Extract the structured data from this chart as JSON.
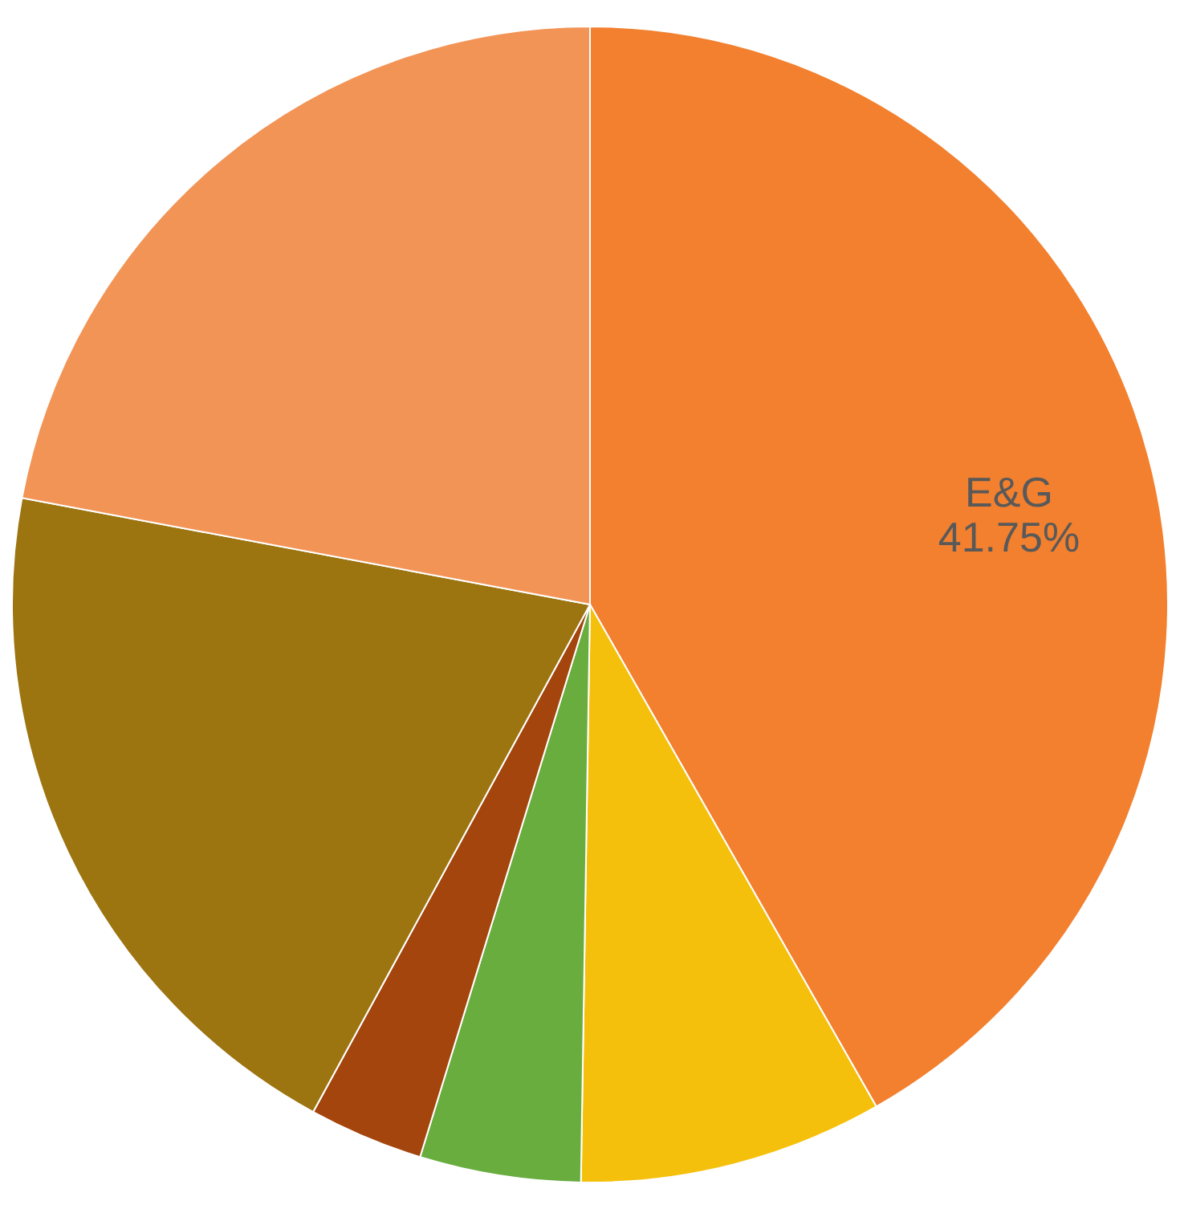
{
  "chart_data": {
    "type": "pie",
    "categories": [
      "E&G",
      null,
      null,
      null,
      null,
      null
    ],
    "values": [
      41.75,
      8.5,
      4.5,
      3.2,
      20.0,
      22.05
    ],
    "colors": [
      "#f2802f",
      "#f5c00c",
      "#6aad3f",
      "#a3450c",
      "#9c7410",
      "#f29456"
    ],
    "value_labels": [
      "41.75%",
      null,
      null,
      null,
      null,
      null
    ],
    "legend": false
  }
}
